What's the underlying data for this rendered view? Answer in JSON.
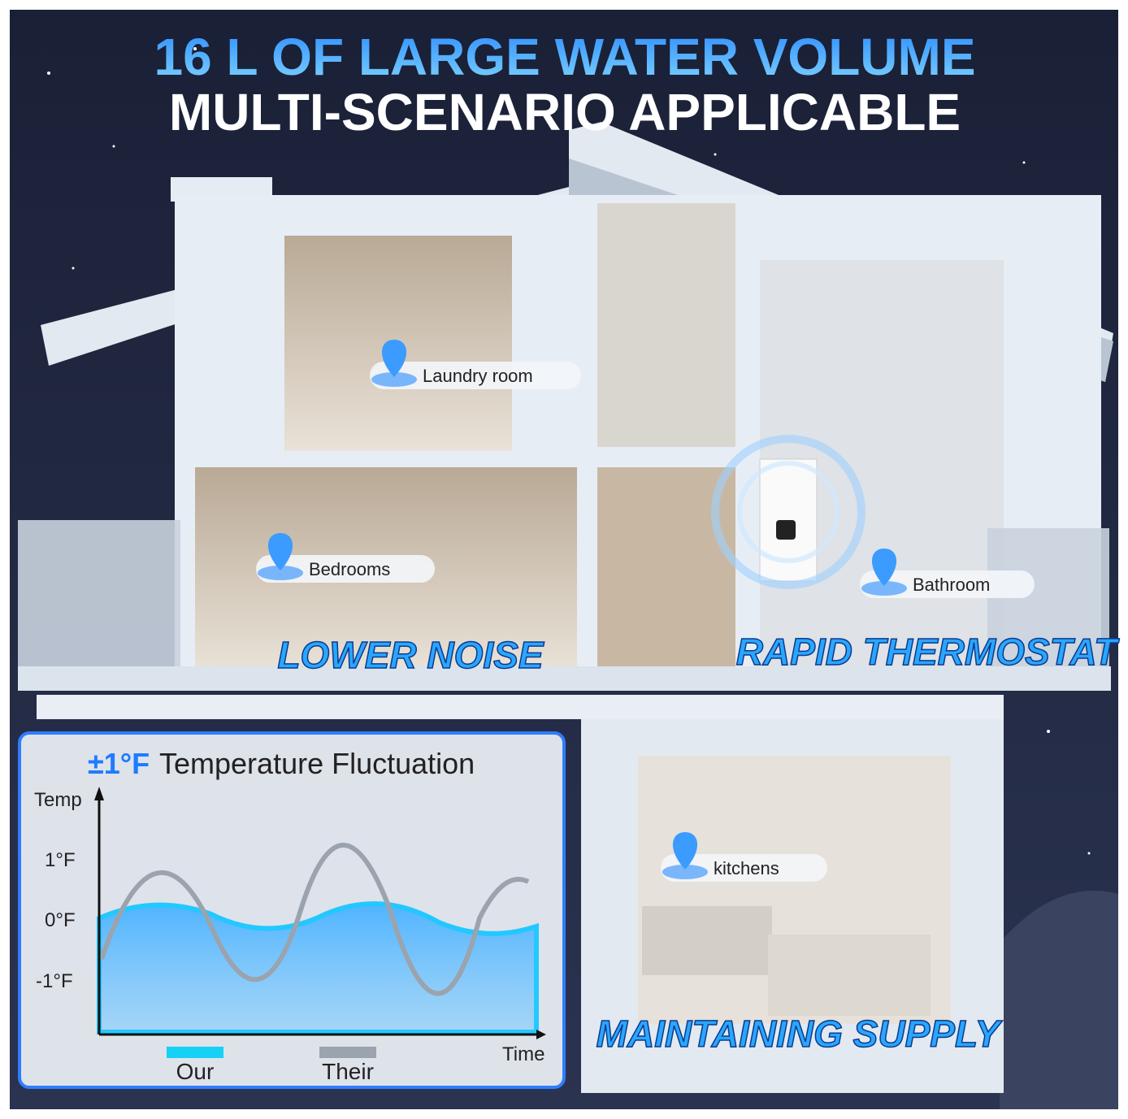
{
  "header": {
    "title": "16 L OF LARGE WATER VOLUME",
    "subtitle": "MULTI-SCENARIO APPLICABLE"
  },
  "rooms": [
    {
      "label": "Laundry room"
    },
    {
      "label": "Bedrooms"
    },
    {
      "label": "Bathroom"
    },
    {
      "label": "kitchens"
    }
  ],
  "features": [
    "LOWER NOISE",
    "RAPID THERMOSTAT",
    "MAINTAINING SUPPLY"
  ],
  "inset": {
    "title_prefix": "±1°F",
    "title": "Temperature Fluctuation",
    "y_axis_label": "Temp",
    "y_labels": [
      "1°F",
      "0°F",
      "-1°F"
    ],
    "x_axis_label": "Time",
    "legend": [
      {
        "name": "Our"
      },
      {
        "name": "Their"
      }
    ]
  }
}
